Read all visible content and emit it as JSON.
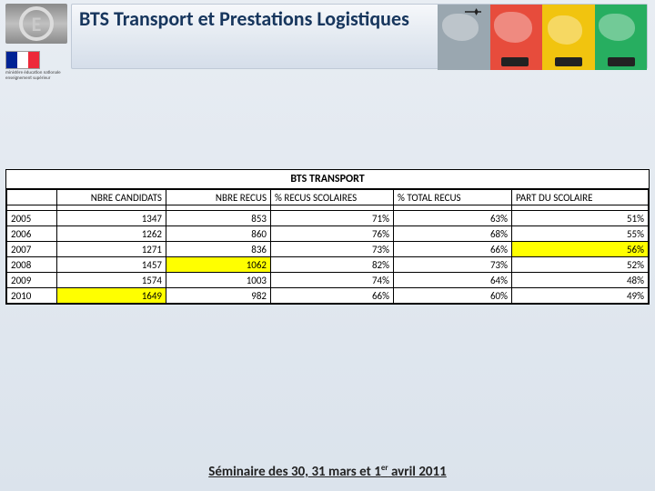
{
  "header": {
    "title": "BTS Transport et Prestations Logistiques",
    "ministry_text": "ministère éducation nationale enseignement supérieur",
    "logo_letter": "E",
    "world_colors": [
      "#9aa7b0",
      "#e74c3c",
      "#f1c40f",
      "#27ae60"
    ]
  },
  "table": {
    "title": "BTS TRANSPORT",
    "columns": [
      "",
      "NBRE CANDIDATS",
      "NBRE RECUS",
      "% RECUS SCOLAIRES",
      "% TOTAL RECUS",
      "PART DU SCOLAIRE"
    ],
    "rows": [
      {
        "year": "2005",
        "cand": "1347",
        "recus": "853",
        "pct_scol": "71%",
        "pct_total": "63%",
        "part": "51%",
        "hl_cand": false,
        "hl_recus": false,
        "hl_part": false
      },
      {
        "year": "2006",
        "cand": "1262",
        "recus": "860",
        "pct_scol": "76%",
        "pct_total": "68%",
        "part": "55%",
        "hl_cand": false,
        "hl_recus": false,
        "hl_part": false
      },
      {
        "year": "2007",
        "cand": "1271",
        "recus": "836",
        "pct_scol": "73%",
        "pct_total": "66%",
        "part": "56%",
        "hl_cand": false,
        "hl_recus": false,
        "hl_part": true
      },
      {
        "year": "2008",
        "cand": "1457",
        "recus": "1062",
        "pct_scol": "82%",
        "pct_total": "73%",
        "part": "52%",
        "hl_cand": false,
        "hl_recus": true,
        "hl_part": false
      },
      {
        "year": "2009",
        "cand": "1574",
        "recus": "1003",
        "pct_scol": "74%",
        "pct_total": "64%",
        "part": "48%",
        "hl_cand": false,
        "hl_recus": false,
        "hl_part": false
      },
      {
        "year": "2010",
        "cand": "1649",
        "recus": "982",
        "pct_scol": "66%",
        "pct_total": "60%",
        "part": "49%",
        "hl_cand": true,
        "hl_recus": false,
        "hl_part": false
      }
    ],
    "highlight_color": "#ffff00"
  },
  "footer": {
    "prefix": "Séminaire des 30, 31 mars et 1",
    "sup": "er",
    "suffix": " avril 2011"
  }
}
